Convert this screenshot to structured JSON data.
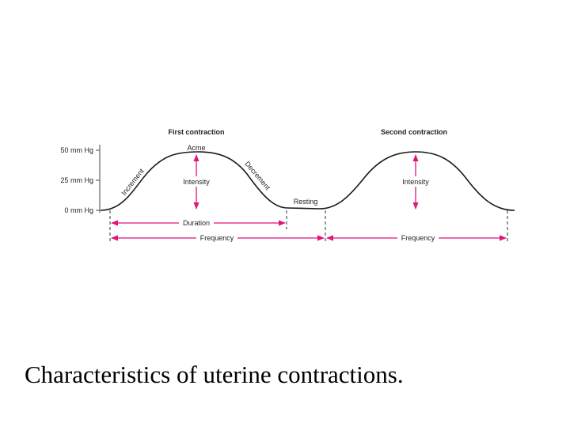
{
  "figure": {
    "contraction_labels": [
      "First contraction",
      "Second contraction"
    ],
    "y_levels": [
      "50 mm Hg",
      "25 mm Hg",
      "0 mm Hg"
    ],
    "phases": {
      "increment": "Increment",
      "acme": "Acme",
      "decrement": "Decrement",
      "resting": "Resting"
    },
    "intensity_labels": [
      "Intensity",
      "Intensity"
    ],
    "duration_label": "Duration",
    "frequency_labels": [
      "Frequency",
      "Frequency"
    ],
    "colors": {
      "arrow": "#e0147a",
      "curve": "#1a1a1a",
      "text": "#222222"
    }
  },
  "caption": "Characteristics of uterine contractions."
}
